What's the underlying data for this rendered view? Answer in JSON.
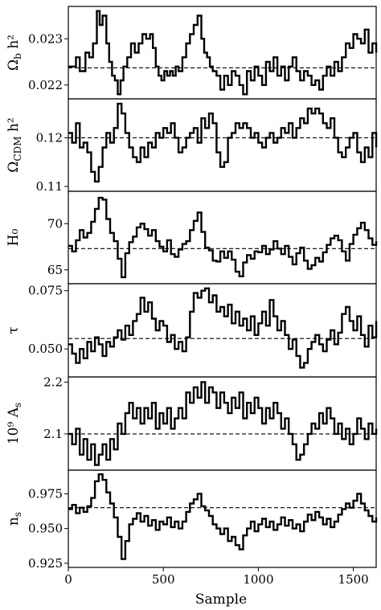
{
  "chart_data": {
    "type": "line",
    "xlabel": "Sample",
    "xlim": [
      0,
      1620
    ],
    "xticks": [
      0,
      500,
      1000,
      1500
    ],
    "xtick_labels": [
      "0",
      "500",
      "1000",
      "1500"
    ],
    "grid": false,
    "panels": [
      {
        "ylabel": "Ω_b h²",
        "ylim": [
          0.0217,
          0.0237
        ],
        "yticks": [
          0.022,
          0.023
        ],
        "ytick_labels": [
          "0.022",
          "0.023"
        ],
        "reference": 0.02237,
        "x": [
          0,
          40,
          60,
          90,
          110,
          130,
          150,
          165,
          180,
          200,
          215,
          230,
          245,
          260,
          275,
          290,
          310,
          330,
          350,
          370,
          390,
          410,
          430,
          445,
          460,
          475,
          490,
          505,
          520,
          535,
          550,
          565,
          580,
          600,
          620,
          640,
          660,
          680,
          700,
          715,
          730,
          745,
          760,
          780,
          800,
          820,
          840,
          860,
          880,
          900,
          920,
          940,
          960,
          980,
          1000,
          1020,
          1040,
          1060,
          1080,
          1100,
          1120,
          1140,
          1160,
          1180,
          1200,
          1220,
          1240,
          1260,
          1280,
          1300,
          1320,
          1340,
          1360,
          1380,
          1400,
          1420,
          1440,
          1460,
          1480,
          1500,
          1520,
          1540,
          1560,
          1580,
          1600,
          1620
        ],
        "values": [
          0.0224,
          0.0226,
          0.0223,
          0.0227,
          0.0226,
          0.0229,
          0.0236,
          0.0233,
          0.0235,
          0.0229,
          0.0225,
          0.0222,
          0.0221,
          0.0218,
          0.0221,
          0.0224,
          0.0226,
          0.0229,
          0.0227,
          0.0229,
          0.0231,
          0.023,
          0.0231,
          0.0228,
          0.0224,
          0.0222,
          0.0221,
          0.0223,
          0.0222,
          0.0223,
          0.0222,
          0.0224,
          0.0223,
          0.0226,
          0.0229,
          0.0231,
          0.0233,
          0.0235,
          0.023,
          0.0227,
          0.0226,
          0.0224,
          0.0223,
          0.0222,
          0.0219,
          0.0222,
          0.022,
          0.0223,
          0.0222,
          0.022,
          0.0218,
          0.0223,
          0.0221,
          0.0224,
          0.0222,
          0.022,
          0.0225,
          0.0223,
          0.0226,
          0.0222,
          0.0224,
          0.0221,
          0.0224,
          0.0226,
          0.0223,
          0.0221,
          0.0223,
          0.0222,
          0.022,
          0.0221,
          0.0219,
          0.0222,
          0.0224,
          0.0222,
          0.0225,
          0.0223,
          0.0226,
          0.0229,
          0.0228,
          0.0231,
          0.023,
          0.0229,
          0.0232,
          0.0227,
          0.0229,
          0.0227
        ]
      },
      {
        "ylabel": "Ω_CDM h²",
        "ylim": [
          0.109,
          0.128
        ],
        "yticks": [
          0.11,
          0.12
        ],
        "ytick_labels": [
          "0.11",
          "0.12"
        ],
        "reference": 0.12,
        "x": [
          0,
          20,
          40,
          60,
          80,
          100,
          120,
          140,
          160,
          180,
          200,
          220,
          240,
          260,
          280,
          300,
          320,
          340,
          360,
          380,
          400,
          420,
          440,
          460,
          480,
          500,
          520,
          540,
          560,
          580,
          600,
          620,
          640,
          660,
          680,
          700,
          720,
          740,
          760,
          780,
          800,
          820,
          840,
          860,
          880,
          900,
          920,
          940,
          960,
          980,
          1000,
          1020,
          1040,
          1060,
          1080,
          1100,
          1120,
          1140,
          1160,
          1180,
          1200,
          1220,
          1240,
          1260,
          1280,
          1300,
          1320,
          1340,
          1360,
          1380,
          1400,
          1420,
          1440,
          1460,
          1480,
          1500,
          1520,
          1540,
          1560,
          1580,
          1600,
          1620
        ],
        "values": [
          0.121,
          0.119,
          0.123,
          0.118,
          0.119,
          0.117,
          0.113,
          0.111,
          0.114,
          0.118,
          0.121,
          0.119,
          0.122,
          0.127,
          0.125,
          0.121,
          0.118,
          0.116,
          0.115,
          0.118,
          0.116,
          0.119,
          0.118,
          0.121,
          0.12,
          0.122,
          0.121,
          0.123,
          0.12,
          0.117,
          0.118,
          0.12,
          0.121,
          0.122,
          0.119,
          0.124,
          0.122,
          0.125,
          0.123,
          0.117,
          0.114,
          0.115,
          0.12,
          0.121,
          0.123,
          0.122,
          0.123,
          0.122,
          0.12,
          0.121,
          0.119,
          0.118,
          0.12,
          0.121,
          0.119,
          0.12,
          0.122,
          0.121,
          0.123,
          0.12,
          0.122,
          0.124,
          0.123,
          0.126,
          0.125,
          0.126,
          0.125,
          0.123,
          0.122,
          0.124,
          0.12,
          0.117,
          0.116,
          0.118,
          0.12,
          0.121,
          0.117,
          0.115,
          0.118,
          0.116,
          0.121,
          0.118
        ]
      },
      {
        "ylabel": "H₀",
        "ylim": [
          63.5,
          73.5
        ],
        "yticks": [
          65,
          70
        ],
        "ytick_labels": [
          "65",
          "70"
        ],
        "reference": 67.3,
        "x": [
          0,
          20,
          40,
          60,
          80,
          100,
          120,
          140,
          160,
          180,
          200,
          220,
          240,
          260,
          280,
          300,
          320,
          340,
          360,
          380,
          400,
          420,
          440,
          460,
          480,
          500,
          520,
          540,
          560,
          580,
          600,
          620,
          640,
          660,
          680,
          700,
          720,
          740,
          760,
          780,
          800,
          820,
          840,
          860,
          880,
          900,
          920,
          940,
          960,
          980,
          1000,
          1020,
          1040,
          1060,
          1080,
          1100,
          1120,
          1140,
          1160,
          1180,
          1200,
          1220,
          1240,
          1260,
          1280,
          1300,
          1320,
          1340,
          1360,
          1380,
          1400,
          1420,
          1440,
          1460,
          1480,
          1500,
          1520,
          1540,
          1560,
          1580,
          1600,
          1620
        ],
        "values": [
          67.6,
          67.0,
          68.2,
          69.3,
          68.5,
          69.0,
          70.2,
          71.6,
          72.8,
          72.6,
          70.5,
          69.0,
          68.1,
          66.2,
          64.2,
          66.8,
          68.0,
          68.6,
          69.6,
          70.0,
          69.4,
          68.7,
          69.3,
          68.1,
          67.5,
          67.0,
          68.2,
          66.7,
          66.4,
          67.2,
          67.8,
          68.1,
          69.3,
          70.3,
          71.2,
          69.1,
          67.4,
          67.1,
          66.0,
          65.9,
          67.0,
          66.3,
          67.0,
          66.1,
          64.8,
          64.3,
          65.8,
          66.6,
          66.2,
          67.0,
          66.9,
          67.6,
          66.7,
          67.2,
          68.1,
          67.3,
          66.7,
          67.6,
          66.4,
          65.6,
          66.8,
          67.4,
          66.0,
          65.1,
          65.5,
          66.3,
          65.9,
          66.9,
          67.7,
          68.4,
          68.7,
          68.2,
          67.0,
          66.0,
          67.8,
          68.8,
          69.5,
          70.1,
          69.3,
          68.4,
          67.7,
          68.1
        ]
      },
      {
        "ylabel": "τ",
        "ylim": [
          0.038,
          0.078
        ],
        "yticks": [
          0.05,
          0.075
        ],
        "ytick_labels": [
          "0.050",
          "0.075"
        ],
        "reference": 0.0545,
        "x": [
          0,
          20,
          40,
          60,
          80,
          100,
          120,
          140,
          160,
          180,
          200,
          220,
          240,
          260,
          280,
          300,
          320,
          340,
          360,
          380,
          400,
          420,
          440,
          460,
          480,
          500,
          520,
          540,
          560,
          580,
          600,
          620,
          640,
          660,
          680,
          700,
          720,
          740,
          760,
          780,
          800,
          820,
          840,
          860,
          880,
          900,
          920,
          940,
          960,
          980,
          1000,
          1020,
          1040,
          1060,
          1080,
          1100,
          1120,
          1140,
          1160,
          1180,
          1200,
          1220,
          1240,
          1260,
          1280,
          1300,
          1320,
          1340,
          1360,
          1380,
          1400,
          1420,
          1440,
          1460,
          1480,
          1500,
          1520,
          1540,
          1560,
          1580,
          1600,
          1620
        ],
        "values": [
          0.052,
          0.048,
          0.044,
          0.05,
          0.046,
          0.053,
          0.049,
          0.055,
          0.052,
          0.047,
          0.053,
          0.051,
          0.055,
          0.058,
          0.054,
          0.06,
          0.056,
          0.062,
          0.065,
          0.072,
          0.066,
          0.07,
          0.063,
          0.058,
          0.062,
          0.06,
          0.053,
          0.056,
          0.05,
          0.053,
          0.049,
          0.055,
          0.066,
          0.074,
          0.072,
          0.075,
          0.076,
          0.07,
          0.073,
          0.066,
          0.068,
          0.064,
          0.069,
          0.061,
          0.066,
          0.06,
          0.063,
          0.058,
          0.064,
          0.056,
          0.061,
          0.066,
          0.06,
          0.071,
          0.064,
          0.058,
          0.062,
          0.056,
          0.05,
          0.054,
          0.047,
          0.042,
          0.044,
          0.05,
          0.053,
          0.056,
          0.052,
          0.049,
          0.054,
          0.058,
          0.052,
          0.057,
          0.065,
          0.068,
          0.062,
          0.058,
          0.064,
          0.056,
          0.051,
          0.06,
          0.055,
          0.062
        ]
      },
      {
        "ylabel": "10⁹ A_s",
        "ylim": [
          2.03,
          2.21
        ],
        "yticks": [
          2.1,
          2.2
        ],
        "ytick_labels": [
          "2.1",
          "2.2"
        ],
        "reference": 2.1,
        "x": [
          0,
          20,
          40,
          60,
          80,
          100,
          120,
          140,
          160,
          180,
          200,
          220,
          240,
          260,
          280,
          300,
          320,
          340,
          360,
          380,
          400,
          420,
          440,
          460,
          480,
          500,
          520,
          540,
          560,
          580,
          600,
          620,
          640,
          660,
          680,
          700,
          720,
          740,
          760,
          780,
          800,
          820,
          840,
          860,
          880,
          900,
          920,
          940,
          960,
          980,
          1000,
          1020,
          1040,
          1060,
          1080,
          1100,
          1120,
          1140,
          1160,
          1180,
          1200,
          1220,
          1240,
          1260,
          1280,
          1300,
          1320,
          1340,
          1360,
          1380,
          1400,
          1420,
          1440,
          1460,
          1480,
          1500,
          1520,
          1540,
          1560,
          1580,
          1600,
          1620
        ],
        "values": [
          2.1,
          2.08,
          2.11,
          2.06,
          2.09,
          2.05,
          2.08,
          2.04,
          2.06,
          2.08,
          2.05,
          2.09,
          2.07,
          2.12,
          2.1,
          2.14,
          2.16,
          2.13,
          2.15,
          2.12,
          2.15,
          2.13,
          2.16,
          2.11,
          2.14,
          2.12,
          2.15,
          2.11,
          2.13,
          2.15,
          2.13,
          2.18,
          2.16,
          2.19,
          2.17,
          2.2,
          2.16,
          2.19,
          2.18,
          2.15,
          2.18,
          2.16,
          2.14,
          2.17,
          2.15,
          2.18,
          2.13,
          2.16,
          2.14,
          2.17,
          2.15,
          2.12,
          2.15,
          2.13,
          2.16,
          2.14,
          2.11,
          2.13,
          2.1,
          2.08,
          2.05,
          2.06,
          2.08,
          2.1,
          2.12,
          2.11,
          2.14,
          2.12,
          2.15,
          2.13,
          2.1,
          2.12,
          2.09,
          2.11,
          2.08,
          2.1,
          2.13,
          2.11,
          2.09,
          2.12,
          2.1,
          2.11
        ]
      },
      {
        "ylabel": "n_s",
        "ylim": [
          0.922,
          0.992
        ],
        "yticks": [
          0.925,
          0.95,
          0.975
        ],
        "ytick_labels": [
          "0.925",
          "0.950",
          "0.975"
        ],
        "reference": 0.965,
        "x": [
          0,
          20,
          40,
          60,
          80,
          100,
          120,
          140,
          160,
          180,
          200,
          220,
          240,
          260,
          280,
          300,
          320,
          340,
          360,
          380,
          400,
          420,
          440,
          460,
          480,
          500,
          520,
          540,
          560,
          580,
          600,
          620,
          640,
          660,
          680,
          700,
          720,
          740,
          760,
          780,
          800,
          820,
          840,
          860,
          880,
          900,
          920,
          940,
          960,
          980,
          1000,
          1020,
          1040,
          1060,
          1080,
          1100,
          1120,
          1140,
          1160,
          1180,
          1200,
          1220,
          1240,
          1260,
          1280,
          1300,
          1320,
          1340,
          1360,
          1380,
          1400,
          1420,
          1440,
          1460,
          1480,
          1500,
          1520,
          1540,
          1560,
          1580,
          1600,
          1620
        ],
        "values": [
          0.964,
          0.967,
          0.961,
          0.965,
          0.962,
          0.966,
          0.972,
          0.984,
          0.989,
          0.985,
          0.976,
          0.968,
          0.958,
          0.944,
          0.928,
          0.941,
          0.953,
          0.957,
          0.961,
          0.955,
          0.959,
          0.952,
          0.956,
          0.949,
          0.955,
          0.953,
          0.958,
          0.951,
          0.955,
          0.95,
          0.955,
          0.962,
          0.968,
          0.971,
          0.975,
          0.966,
          0.963,
          0.959,
          0.953,
          0.95,
          0.946,
          0.95,
          0.941,
          0.944,
          0.938,
          0.935,
          0.945,
          0.95,
          0.955,
          0.948,
          0.953,
          0.957,
          0.951,
          0.955,
          0.949,
          0.953,
          0.958,
          0.952,
          0.956,
          0.95,
          0.953,
          0.948,
          0.955,
          0.96,
          0.956,
          0.962,
          0.958,
          0.953,
          0.957,
          0.951,
          0.955,
          0.96,
          0.964,
          0.968,
          0.965,
          0.97,
          0.975,
          0.968,
          0.963,
          0.959,
          0.955,
          0.958
        ]
      }
    ]
  }
}
